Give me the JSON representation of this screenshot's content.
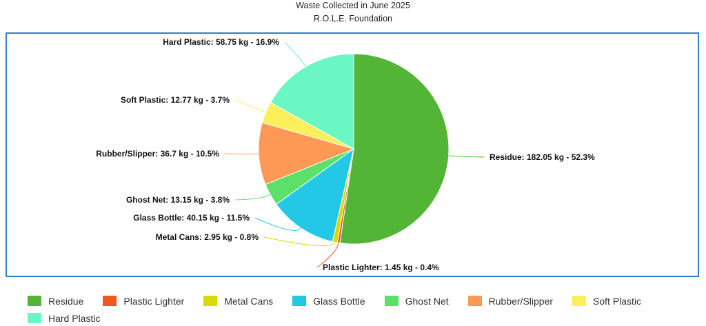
{
  "chart_data": {
    "type": "pie",
    "title": "Waste Collected in June 2025",
    "subtitle": "R.O.L.E. Foundation",
    "slices": [
      {
        "name": "Residue",
        "value": 182.05,
        "percent": 52.3,
        "color": "#52b535",
        "label": "Residue: 182.05 kg - 52.3%"
      },
      {
        "name": "Plastic Lighter",
        "value": 1.45,
        "percent": 0.4,
        "color": "#f0561e",
        "label": "Plastic Lighter: 1.45 kg - 0.4%"
      },
      {
        "name": "Metal Cans",
        "value": 2.95,
        "percent": 0.8,
        "color": "#d9d900",
        "label": "Metal Cans: 2.95 kg - 0.8%"
      },
      {
        "name": "Glass Bottle",
        "value": 40.15,
        "percent": 11.5,
        "color": "#23c8e6",
        "label": "Glass Bottle: 40.15 kg - 11.5%"
      },
      {
        "name": "Ghost Net",
        "value": 13.15,
        "percent": 3.8,
        "color": "#5de06a",
        "label": "Ghost Net: 13.15 kg - 3.8%"
      },
      {
        "name": "Rubber/Slipper",
        "value": 36.7,
        "percent": 10.5,
        "color": "#fe9955",
        "label": "Rubber/Slipper: 36.7 kg - 10.5%"
      },
      {
        "name": "Soft Plastic",
        "value": 12.77,
        "percent": 3.7,
        "color": "#fbef5a",
        "label": "Soft Plastic: 12.77 kg - 3.7%"
      },
      {
        "name": "Hard Plastic",
        "value": 58.75,
        "percent": 16.9,
        "color": "#6af7c4",
        "label": "Hard Plastic: 58.75 kg - 16.9%"
      }
    ],
    "legend_placement": "bottom"
  }
}
